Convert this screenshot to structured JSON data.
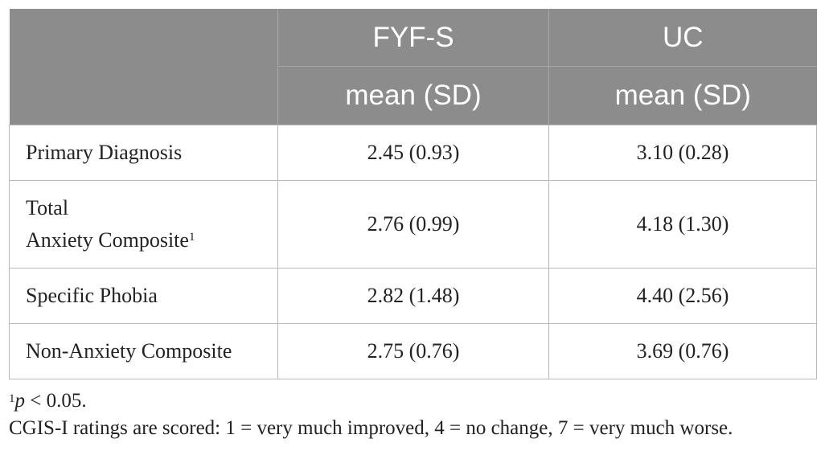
{
  "table": {
    "header_row1": [
      "",
      "FYF-S",
      "UC"
    ],
    "header_row2": [
      "",
      "mean (SD)",
      "mean (SD)"
    ],
    "rows": [
      {
        "label_line1": "Primary Diagnosis",
        "label_line2": "",
        "footnote": "",
        "fyfs": "2.45 (0.93)",
        "uc": "3.10 (0.28)"
      },
      {
        "label_line1": "Total",
        "label_line2": "Anxiety Composite",
        "footnote": "1",
        "fyfs": "2.76 (0.99)",
        "uc": "4.18 (1.30)"
      },
      {
        "label_line1": "Specific Phobia",
        "label_line2": "",
        "footnote": "",
        "fyfs": "2.82 (1.48)",
        "uc": "4.40 (2.56)"
      },
      {
        "label_line1": "Non-Anxiety Composite",
        "label_line2": "",
        "footnote": "",
        "fyfs": "2.75 (0.76)",
        "uc": "3.69 (0.76)"
      }
    ]
  },
  "notes": {
    "footnote_marker": "1",
    "footnote_p": "p",
    "footnote_rest": " < 0.05.",
    "ratings_note": "CGIS-I ratings are scored: 1 = very much improved, 4 = no change, 7 = very much worse."
  },
  "colors": {
    "header_bg": "#8c8c8c",
    "header_text": "#ffffff",
    "border": "#b8b8b8"
  }
}
